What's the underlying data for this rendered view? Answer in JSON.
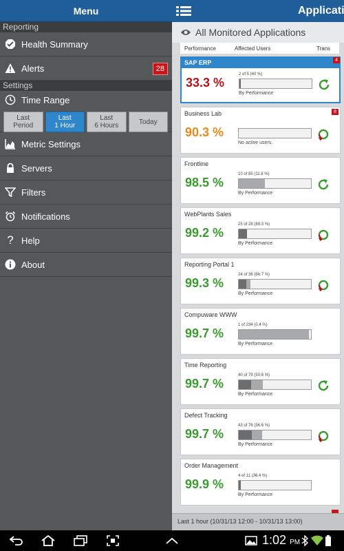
{
  "menu": {
    "title": "Menu",
    "sections": {
      "reporting": "Reporting",
      "settings": "Settings"
    },
    "items": {
      "health_summary": "Health Summary",
      "alerts": "Alerts",
      "alerts_count": "28",
      "time_range": "Time Range",
      "metric_settings": "Metric Settings",
      "servers": "Servers",
      "filters": "Filters",
      "notifications": "Notifications",
      "help": "Help",
      "about": "About"
    },
    "time_range_buttons": [
      {
        "line1": "Last",
        "line2": "Period",
        "active": false
      },
      {
        "line1": "Last",
        "line2": "1 Hour",
        "active": true
      },
      {
        "line1": "Last",
        "line2": "6 Hours",
        "active": false
      },
      {
        "line1": "Today",
        "line2": "",
        "active": false
      }
    ]
  },
  "panel": {
    "title": "Applicatio",
    "monitored_title": "All Monitored Applications",
    "columns": {
      "performance": "Performance",
      "affected_users": "Affected Users",
      "trans": "Trans"
    },
    "footer": "Last 1 hour (10/31/13 12:00 - 10/31/13 13:00)"
  },
  "colors": {
    "good": "#3a9b2e",
    "warn": "#e8891c",
    "bad": "#b2141b",
    "accent": "#2f86cb",
    "header": "#1f5e99"
  },
  "apps": [
    {
      "name": "SAP ERP",
      "badge": "4",
      "performance": "33.3 %",
      "status": "bad",
      "users_text": "2 of 5 (40 %)",
      "sub": "By Performance",
      "dark_pct": 2,
      "light_pct": 0,
      "trend": "up",
      "selected": true
    },
    {
      "name": "Business Lab",
      "badge": "8",
      "performance": "90.3 %",
      "status": "warn",
      "users_text": "",
      "sub": "No active users.",
      "dark_pct": 0,
      "light_pct": 0,
      "trend": "down",
      "selected": false
    },
    {
      "name": "Frontline",
      "badge": "",
      "performance": "98.5 %",
      "status": "good",
      "users_text": "10 of 85 (11.8 %)",
      "sub": "By Performance",
      "dark_pct": 0,
      "light_pct": 36,
      "trend": "up",
      "selected": false
    },
    {
      "name": "WebPlants Sales",
      "badge": "",
      "performance": "99.2 %",
      "status": "good",
      "users_text": "25 of 28 (89.3 %)",
      "sub": "By Performance",
      "dark_pct": 11,
      "light_pct": 0,
      "trend": "down",
      "selected": false
    },
    {
      "name": "Reporting Portal 1",
      "badge": "",
      "performance": "99.3 %",
      "status": "good",
      "users_text": "24 of 36 (66.7 %)",
      "sub": "By Performance",
      "dark_pct": 10,
      "light_pct": 6,
      "trend": "down",
      "selected": false
    },
    {
      "name": "Compuware WWW",
      "badge": "",
      "performance": "99.7 %",
      "status": "good",
      "users_text": "1 of 234 (0.4 %)",
      "sub": "By Performance",
      "dark_pct": 0,
      "light_pct": 97,
      "trend": "",
      "selected": false
    },
    {
      "name": "Time Reporting",
      "badge": "",
      "performance": "99.7 %",
      "status": "good",
      "users_text": "40 of 79 (50.6 %)",
      "sub": "By Performance",
      "dark_pct": 17,
      "light_pct": 16,
      "trend": "up",
      "selected": false
    },
    {
      "name": "Defect Tracking",
      "badge": "",
      "performance": "99.7 %",
      "status": "good",
      "users_text": "43 of 76 (56.6 %)",
      "sub": "By Performance",
      "dark_pct": 18,
      "light_pct": 14,
      "trend": "down",
      "selected": false
    },
    {
      "name": "Order Management",
      "badge": "",
      "performance": "99.9 %",
      "status": "good",
      "users_text": "4 of 11 (36.4 %)",
      "sub": "By Performance",
      "dark_pct": 3,
      "light_pct": 0,
      "trend": "",
      "selected": false
    }
  ],
  "system_bar": {
    "time": "1:02",
    "ampm": "PM"
  }
}
